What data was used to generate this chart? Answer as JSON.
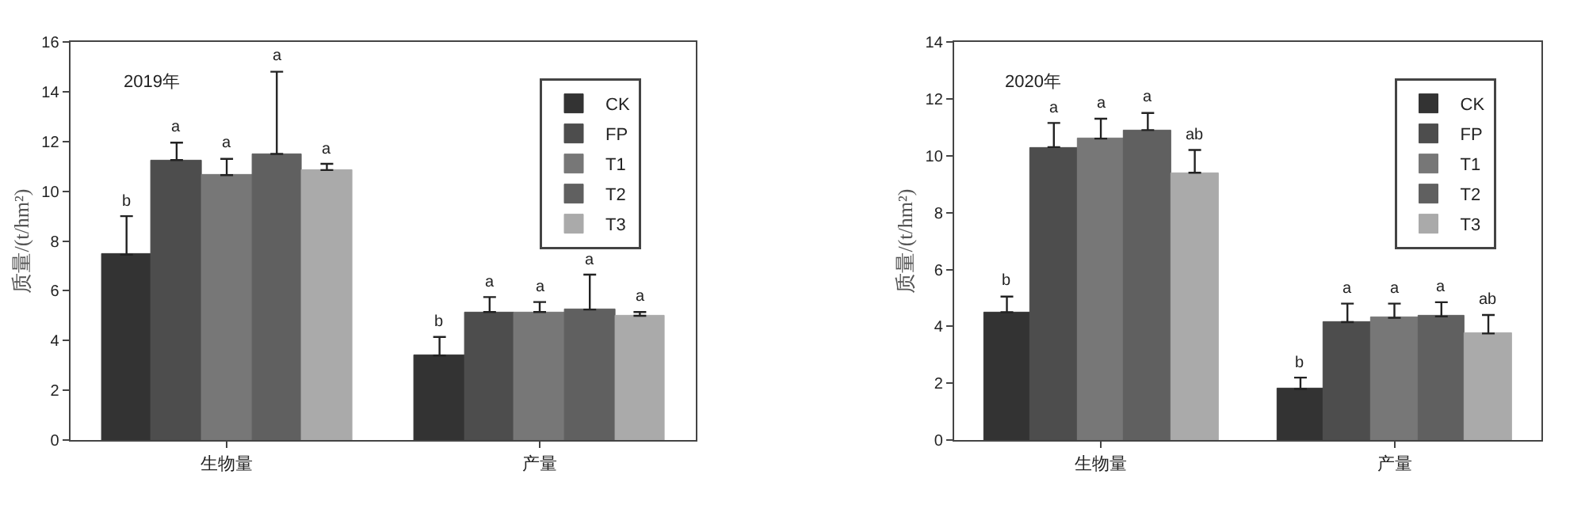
{
  "chart_data": [
    {
      "type": "bar",
      "categories": [
        "生物量",
        "产量"
      ],
      "ylabel": "质量/(t/hm²)",
      "ylim": [
        0,
        16
      ],
      "yticks": [
        0,
        2,
        4,
        6,
        8,
        10,
        12,
        14,
        16
      ],
      "legend": "top right",
      "series": [
        {
          "name": "CK",
          "color": "#333333",
          "values": [
            7.45,
            3.4
          ],
          "errors": [
            [
              7.45,
              9.0
            ],
            [
              3.4,
              4.15
            ]
          ]
        },
        {
          "name": "FP",
          "color": "#4d4d4d",
          "values": [
            11.25,
            5.15
          ],
          "errors": [
            [
              11.25,
              11.95
            ],
            [
              5.15,
              5.75
            ]
          ]
        },
        {
          "name": "T1",
          "color": "#777777",
          "values": [
            10.65,
            5.15
          ],
          "errors": [
            [
              10.65,
              11.3
            ],
            [
              5.15,
              5.55
            ]
          ]
        },
        {
          "name": "T2",
          "color": "#606060",
          "values": [
            11.5,
            5.25
          ],
          "errors": [
            [
              11.5,
              14.8
            ],
            [
              5.25,
              6.65
            ]
          ]
        },
        {
          "name": "T3",
          "color": "#aaaaaa",
          "values": [
            10.85,
            5.0
          ],
          "errors": [
            [
              10.85,
              11.1
            ],
            [
              5.0,
              5.15
            ]
          ]
        }
      ],
      "annotations": [
        "2019年",
        "b",
        "a",
        "a",
        "a",
        "a",
        "b",
        "a",
        "a",
        "a",
        "a"
      ]
    },
    {
      "type": "bar",
      "categories": [
        "生物量",
        "产量"
      ],
      "ylabel": "质量/(t/hm²)",
      "ylim": [
        0,
        14
      ],
      "yticks": [
        0,
        2,
        4,
        6,
        8,
        10,
        12,
        14
      ],
      "legend": "top right",
      "series": [
        {
          "name": "CK",
          "color": "#333333",
          "values": [
            4.5,
            1.8
          ],
          "errors": [
            [
              4.5,
              5.05
            ],
            [
              1.8,
              2.2
            ]
          ]
        },
        {
          "name": "FP",
          "color": "#4d4d4d",
          "values": [
            10.3,
            4.15
          ],
          "errors": [
            [
              10.3,
              11.15
            ],
            [
              4.15,
              4.8
            ]
          ]
        },
        {
          "name": "T1",
          "color": "#777777",
          "values": [
            10.6,
            4.3
          ],
          "errors": [
            [
              10.6,
              11.3
            ],
            [
              4.3,
              4.8
            ]
          ]
        },
        {
          "name": "T2",
          "color": "#606060",
          "values": [
            10.9,
            4.35
          ],
          "errors": [
            [
              10.9,
              11.5
            ],
            [
              4.35,
              4.85
            ]
          ]
        },
        {
          "name": "T3",
          "color": "#aaaaaa",
          "values": [
            9.4,
            3.75
          ],
          "errors": [
            [
              9.4,
              10.2
            ],
            [
              3.75,
              4.4
            ]
          ]
        }
      ],
      "annotations": [
        "2020年",
        "b",
        "a",
        "a",
        "a",
        "ab",
        "b",
        "a",
        "a",
        "a",
        "ab"
      ]
    }
  ]
}
